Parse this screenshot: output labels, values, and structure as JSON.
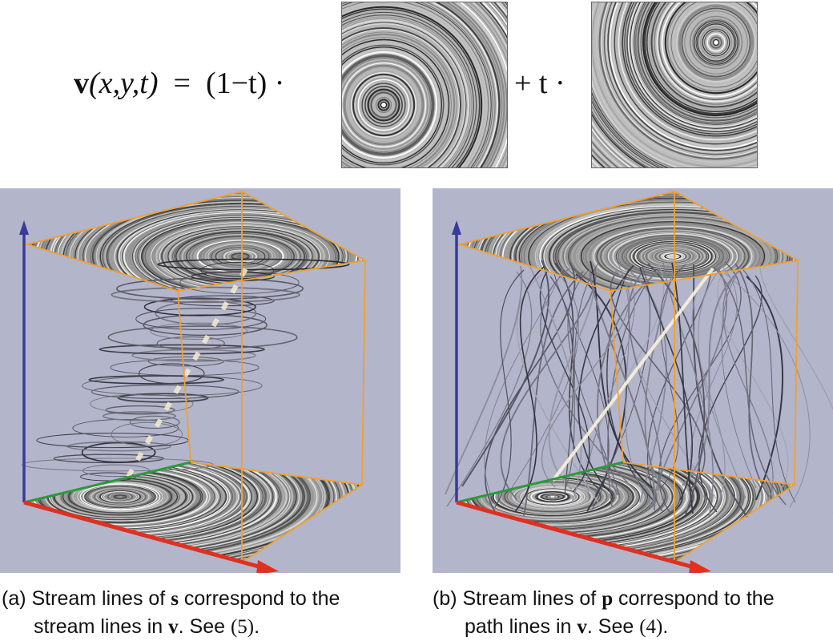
{
  "equation": {
    "lhs_vec": "v",
    "lhs_args": "(x,y,t)",
    "eq_sign": "=",
    "factor": "(1−t) ·",
    "plus": "+ t ·",
    "left_image": "vortex-field-bottom-left",
    "right_image": "vortex-field-top-right"
  },
  "panels": [
    {
      "id": "a",
      "caption_label": "(a) Stream lines of ",
      "caption_symbol": "s",
      "caption_mid": " correspond to the",
      "caption_line2_pre": "stream lines in ",
      "caption_line2_symbol": "v",
      "caption_line2_mid": ". See ",
      "caption_ref": "(5)",
      "caption_end": ".",
      "content": "circular-stream-lines"
    },
    {
      "id": "b",
      "caption_label": "(b) Stream lines of ",
      "caption_symbol": "p",
      "caption_mid": " correspond to the",
      "caption_line2_pre": "path lines in ",
      "caption_line2_symbol": "v",
      "caption_line2_mid": ". See ",
      "caption_ref": "(4)",
      "caption_end": ".",
      "content": "path-lines"
    }
  ],
  "colors": {
    "panel_bg": "#b3b5cb",
    "box_edge": "#f0a030",
    "axis_x": "#e03020",
    "axis_y": "#2a9a3a",
    "axis_z": "#3a3a9a"
  }
}
